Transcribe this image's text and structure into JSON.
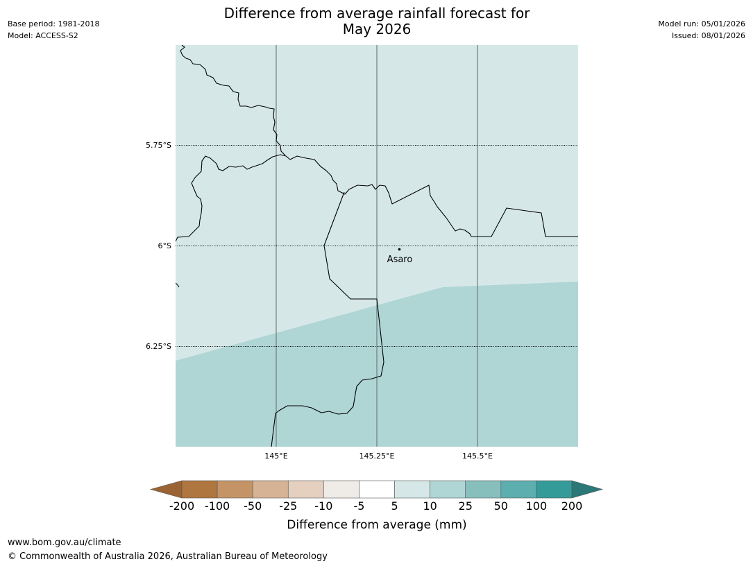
{
  "header": {
    "title_line1": "Difference from average rainfall forecast for",
    "title_line2": "May 2026",
    "base_period": "Base period: 1981-2018",
    "model": "Model: ACCESS-S2",
    "model_run": "Model run: 05/01/2026",
    "issued": "Issued: 08/01/2026"
  },
  "map": {
    "lat_labels": [
      "5.75°S",
      "6°S",
      "6.25°S"
    ],
    "lon_labels": [
      "145°E",
      "145.25°E",
      "145.5°E"
    ],
    "place": {
      "name": "Asaro"
    },
    "fill_colors": {
      "light": "#d5e8e7",
      "medium": "#afd5d5"
    }
  },
  "legend": {
    "label": "Difference from average (mm)",
    "ticks": [
      "-200",
      "-100",
      "-50",
      "-25",
      "-10",
      "-5",
      "5",
      "10",
      "25",
      "50",
      "100",
      "200"
    ],
    "colors": [
      "#9b6333",
      "#b07640",
      "#c49467",
      "#d5b394",
      "#e5d0bf",
      "#efebe7",
      "#ffffff",
      "#d5e8e7",
      "#afd5d5",
      "#87bfbd",
      "#5daeae",
      "#359b98",
      "#2a7877"
    ]
  },
  "footer": {
    "url": "www.bom.gov.au/climate",
    "copyright": "© Commonwealth of Australia 2026, Australian Bureau of Meteorology"
  }
}
